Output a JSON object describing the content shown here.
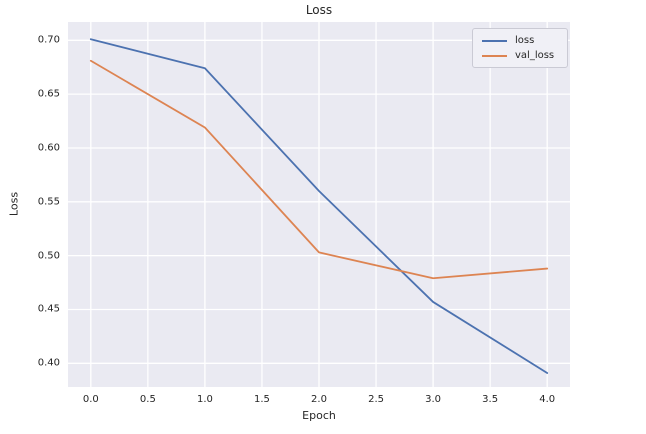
{
  "chart_data": {
    "type": "line",
    "title": "Loss",
    "xlabel": "Epoch",
    "ylabel": "Loss",
    "x": [
      0,
      1,
      2,
      3,
      4
    ],
    "series": [
      {
        "name": "loss",
        "color": "#4C72B0",
        "values": [
          0.701,
          0.674,
          0.56,
          0.457,
          0.391
        ]
      },
      {
        "name": "val_loss",
        "color": "#DD8452",
        "values": [
          0.681,
          0.619,
          0.503,
          0.479,
          0.488
        ]
      }
    ],
    "xlim": [
      -0.2,
      4.2
    ],
    "ylim": [
      0.378,
      0.717
    ],
    "xticks": [
      0.0,
      0.5,
      1.0,
      1.5,
      2.0,
      2.5,
      3.0,
      3.5,
      4.0
    ],
    "xtick_labels": [
      "0.0",
      "0.5",
      "1.0",
      "1.5",
      "2.0",
      "2.5",
      "3.0",
      "3.5",
      "4.0"
    ],
    "yticks": [
      0.4,
      0.45,
      0.5,
      0.55,
      0.6,
      0.65,
      0.7
    ],
    "ytick_labels": [
      "0.40",
      "0.45",
      "0.50",
      "0.55",
      "0.60",
      "0.65",
      "0.70"
    ],
    "grid": true,
    "legend_position": "upper right",
    "colors": {
      "plot_background": "#EAEAF2",
      "grid": "#FFFFFF",
      "text": "#262626"
    }
  }
}
